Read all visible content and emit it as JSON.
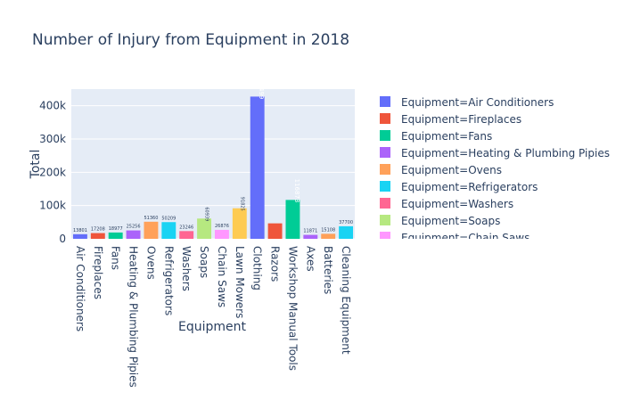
{
  "chart_data": {
    "type": "bar",
    "title": "Number of Injury from Equipment in 2018",
    "xlabel": "Equipment",
    "ylabel": "Total",
    "ylim": [
      0,
      450000
    ],
    "yticks": [
      0,
      100000,
      200000,
      300000,
      400000
    ],
    "ytick_labels": [
      "0",
      "100k",
      "200k",
      "300k",
      "400k"
    ],
    "legend_position": "right",
    "grid": true,
    "categories": [
      "Air Conditioners",
      "Fireplaces",
      "Fans",
      "Heating & Plumbing Pipies",
      "Ovens",
      "Refrigerators",
      "Washers",
      "Soaps",
      "Chain Saws",
      "Lawn Mowers",
      "Clothing",
      "Razors",
      "Workshop Manual Tools",
      "Axes",
      "Batteries",
      "Cleaning Equipment"
    ],
    "values": [
      13801,
      17208,
      18977,
      25256,
      51360,
      50209,
      23246,
      60939,
      26876,
      91825,
      427499,
      46500,
      116873,
      11871,
      15108,
      37700
    ],
    "value_labels": [
      "13801",
      "17208",
      "18977",
      "25256",
      "51360",
      "50209",
      "23246",
      "60939",
      "26876",
      "91825",
      "427499",
      "",
      "116873",
      "11871",
      "15108",
      "37700"
    ],
    "legend_entries": [
      "Equipment=Air Conditioners",
      "Equipment=Fireplaces",
      "Equipment=Fans",
      "Equipment=Heating & Plumbing Pipies",
      "Equipment=Ovens",
      "Equipment=Refrigerators",
      "Equipment=Washers",
      "Equipment=Soaps",
      "Equipment=Chain Saws"
    ],
    "colors": [
      "#636efa",
      "#EF553B",
      "#00cc96",
      "#ab63fa",
      "#FFA15A",
      "#19d3f3",
      "#FF6692",
      "#B6E880",
      "#FF97FF",
      "#FECB52"
    ]
  }
}
